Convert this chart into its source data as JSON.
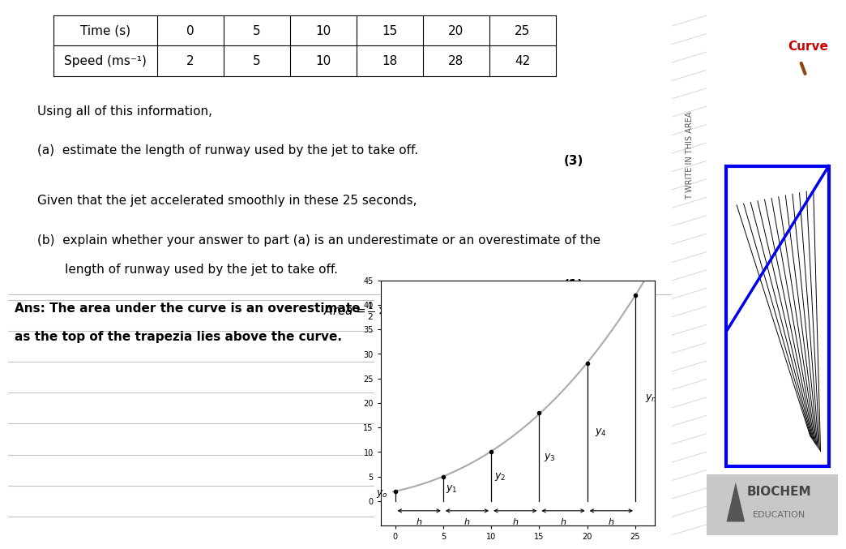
{
  "table_row1": [
    "Time (s)",
    "0",
    "5",
    "10",
    "15",
    "20",
    "25"
  ],
  "table_row2": [
    "Speed (ms⁻¹)",
    "2",
    "5",
    "10",
    "18",
    "28",
    "42"
  ],
  "text_using": "Using all of this information,",
  "text_a": "(a)  estimate the length of runway used by the jet to take off.",
  "text_marks_a": "(3)",
  "text_given": "Given that the jet accelerated smoothly in these 25 seconds,",
  "text_b1": "(b)  explain whether your answer to part (a) is an underestimate or an overestimate of the",
  "text_b2": "       length of runway used by the jet to take off.",
  "text_marks_b": "(1)",
  "ans_line1": "Ans: The area under the curve is an overestimate",
  "ans_line2": "as the top of the trapezia lies above the curve.",
  "curve_label": "Curve",
  "right_panel_text": "T WRITE IN THIS AREA",
  "graph_x": [
    0,
    5,
    10,
    15,
    20,
    25
  ],
  "graph_y": [
    2,
    5,
    10,
    18,
    28,
    42
  ],
  "bg_white": "#ffffff",
  "bg_gray": "#d8d8d8",
  "bg_light_gray": "#e8e8e8",
  "blue_box": "#0000ee",
  "text_color": "#000000",
  "gray_line": "#c0c0c0",
  "curve_red": "#cc0000",
  "graph_curve_color": "#999999",
  "biochem_gray": "#888888"
}
